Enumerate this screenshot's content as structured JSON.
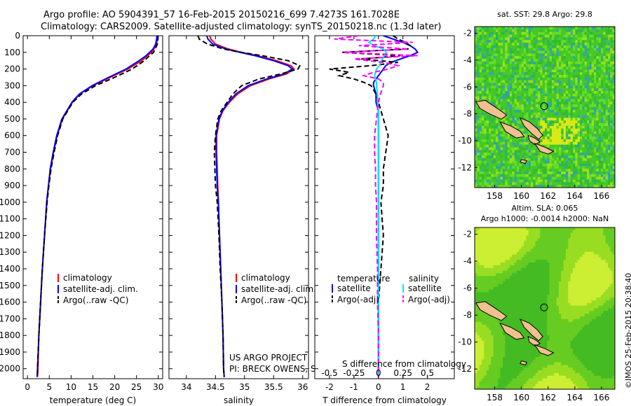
{
  "header": {
    "line1": "Argo profile: AO 5904391_57 16-Feb-2015 20150216_699 7.4273S 161.7028E",
    "line2": "Climatology: CARS2009. Satellite-adjusted climatology: synTS_20150218.nc (1.3d later)"
  },
  "colors": {
    "clim": "#ff0000",
    "sat": "#0000ff",
    "argo": "#000000",
    "sat_s": "#00e5ff",
    "argo_s": "#ff00ff",
    "land": "#f0c090"
  },
  "chart_data": [
    {
      "id": "temperature",
      "type": "line",
      "xlabel": "temperature (deg C)",
      "xlim": [
        -1,
        31
      ],
      "xticks": [
        0,
        5,
        10,
        15,
        20,
        25,
        30
      ],
      "ylim": [
        2060,
        0
      ],
      "yticks": [
        0,
        100,
        200,
        300,
        400,
        500,
        600,
        700,
        800,
        900,
        1000,
        1100,
        1200,
        1300,
        1400,
        1500,
        1600,
        1700,
        1800,
        1900,
        2000
      ],
      "legend": [
        "climatology",
        "satellite-adj. clim.",
        "Argo(..raw -QC)"
      ],
      "depth": [
        0,
        20,
        50,
        80,
        100,
        120,
        150,
        200,
        250,
        300,
        350,
        400,
        500,
        600,
        700,
        800,
        900,
        1000,
        1200,
        1400,
        1600,
        1800,
        2000,
        2050
      ],
      "series": [
        {
          "name": "climatology",
          "style": "clim",
          "values": [
            29.8,
            29.8,
            29.6,
            29.0,
            28.4,
            27.5,
            26.2,
            23.0,
            19.0,
            15.0,
            12.0,
            10.3,
            8.0,
            6.8,
            6.0,
            5.3,
            4.8,
            4.4,
            3.9,
            3.4,
            3.0,
            2.6,
            2.4,
            2.3
          ]
        },
        {
          "name": "satellite-adj. clim.",
          "style": "sat",
          "values": [
            29.7,
            29.6,
            29.4,
            28.8,
            28.0,
            27.2,
            25.6,
            22.6,
            18.6,
            14.8,
            11.9,
            10.2,
            7.9,
            6.7,
            5.9,
            5.2,
            4.8,
            4.4,
            3.9,
            3.4,
            3.0,
            2.6,
            2.3,
            2.2
          ]
        },
        {
          "name": "Argo(..raw -QC)",
          "style": "argo",
          "values": [
            29.9,
            29.9,
            29.8,
            29.3,
            28.9,
            28.0,
            26.8,
            24.0,
            20.0,
            15.6,
            12.4,
            10.4,
            8.1,
            6.9,
            6.1,
            5.4,
            4.9,
            4.5,
            3.9,
            3.4,
            3.0,
            2.6,
            2.3,
            2.3
          ]
        }
      ]
    },
    {
      "id": "salinity",
      "type": "line",
      "xlabel": "salinity",
      "xlim": [
        33.7,
        36.1
      ],
      "xticks": [
        34,
        34.5,
        35,
        35.5,
        36
      ],
      "legend": [
        "climatology",
        "satellite-adj. clim.",
        "Argo(..raw -QC)"
      ],
      "credit": [
        "US ARGO PROJECT",
        "PI: BRECK OWENS, STEVE JAYNE, P. E. ROBBINS"
      ],
      "depth": [
        0,
        20,
        50,
        80,
        100,
        120,
        150,
        180,
        200,
        230,
        260,
        300,
        350,
        400,
        450,
        500,
        600,
        700,
        800,
        900,
        1000,
        1200,
        1400,
        1600,
        1800,
        2000,
        2050
      ],
      "series": [
        {
          "name": "climatology",
          "style": "clim",
          "values": [
            34.4,
            34.42,
            34.5,
            34.72,
            34.95,
            35.22,
            35.55,
            35.8,
            35.85,
            35.72,
            35.42,
            35.1,
            34.88,
            34.74,
            34.63,
            34.57,
            34.52,
            34.52,
            34.53,
            34.54,
            34.55,
            34.57,
            34.59,
            34.61,
            34.63,
            34.64,
            34.65
          ]
        },
        {
          "name": "satellite-adj. clim.",
          "style": "sat",
          "values": [
            34.35,
            34.37,
            34.45,
            34.68,
            34.92,
            35.18,
            35.5,
            35.75,
            35.82,
            35.68,
            35.38,
            35.06,
            34.85,
            34.72,
            34.62,
            34.56,
            34.51,
            34.51,
            34.52,
            34.53,
            34.55,
            34.57,
            34.59,
            34.61,
            34.63,
            34.64,
            34.65
          ]
        },
        {
          "name": "Argo(..raw -QC)",
          "style": "argo",
          "values": [
            34.2,
            34.22,
            34.36,
            34.64,
            34.95,
            35.3,
            35.75,
            35.95,
            35.92,
            35.62,
            35.25,
            34.95,
            34.8,
            34.7,
            34.6,
            34.54,
            34.5,
            34.48,
            34.49,
            34.5,
            34.53,
            34.56,
            34.58,
            34.61,
            34.63,
            34.64,
            34.65
          ]
        }
      ]
    },
    {
      "id": "difference",
      "type": "line",
      "xlabel": "T difference from climatology",
      "top_label": "S difference from climatology",
      "xlim": [
        -2.6,
        3.1
      ],
      "xticks": [
        -2,
        -1,
        0,
        1,
        2
      ],
      "sticks": [
        -0.5,
        -0.25,
        0,
        0.25,
        0.5
      ],
      "stick_labels": [
        "-0.5",
        "-0.25",
        "0",
        "0.25",
        "0.5"
      ],
      "legend_titles": [
        "temperature",
        "salinity"
      ],
      "legend": [
        "satellite",
        "Argo(-adj)",
        "satellite",
        "Argo(-adj)"
      ],
      "depth": [
        0,
        20,
        40,
        60,
        80,
        100,
        120,
        140,
        160,
        180,
        200,
        220,
        240,
        260,
        280,
        300,
        350,
        400,
        450,
        500,
        600,
        700,
        800,
        900,
        1000,
        1200,
        1400,
        1600,
        1800,
        2000,
        2050
      ],
      "series": [
        {
          "name": "temperature satellite",
          "style": "sat",
          "values": [
            0.2,
            0.6,
            1.0,
            1.3,
            1.5,
            1.6,
            1.3,
            0.9,
            0.5,
            0.3,
            0.2,
            0.1,
            0.0,
            -0.1,
            -0.2,
            -0.2,
            -0.1,
            -0.1,
            0.0,
            0.0,
            0.0,
            0.0,
            0.0,
            0.0,
            0.0,
            0.0,
            0.0,
            0.0,
            0.0,
            0.0,
            0.0
          ]
        },
        {
          "name": "temperature Argo(-adj)",
          "style": "argo",
          "values": [
            0.6,
            0.8,
            1.1,
            1.3,
            1.2,
            -1.5,
            0.9,
            -0.7,
            0.8,
            -0.3,
            -2.0,
            -1.2,
            -1.6,
            -1.0,
            -0.6,
            -0.3,
            -0.1,
            0.0,
            0.1,
            0.2,
            0.4,
            0.3,
            0.2,
            0.2,
            0.1,
            0.2,
            0.1,
            0.0,
            0.0,
            0.0,
            0.0
          ]
        },
        {
          "name": "salinity satellite",
          "style": "sat_s",
          "values": [
            -0.03,
            -0.05,
            -0.1,
            -0.04,
            0.05,
            0.08,
            0.06,
            0.04,
            0.02,
            0.01,
            -0.02,
            -0.03,
            -0.04,
            -0.03,
            -0.02,
            -0.02,
            -0.01,
            -0.01,
            0.0,
            0.0,
            0.0,
            0.0,
            0.0,
            0.0,
            0.0,
            0.0,
            0.0,
            0.0,
            0.0,
            0.0,
            0.0
          ]
        },
        {
          "name": "salinity Argo(-adj)",
          "style": "argo_s",
          "values": [
            -0.2,
            -0.45,
            0.35,
            -0.2,
            0.3,
            -0.35,
            0.4,
            -0.25,
            0.05,
            0.2,
            0.1,
            -0.05,
            -0.15,
            0.0,
            0.05,
            0.05,
            0.02,
            0.0,
            -0.01,
            -0.02,
            -0.04,
            -0.04,
            -0.03,
            -0.03,
            -0.02,
            -0.02,
            -0.01,
            -0.01,
            0.0,
            0.0,
            0.0
          ]
        }
      ]
    }
  ],
  "maps": [
    {
      "id": "sst",
      "title": "sat. SST: 29.8  Argo: 29.8",
      "kind": "sst"
    },
    {
      "id": "sla",
      "title": "Altim. SLA: 0.065",
      "title2": "Argo h1000: -0.0014  h2000: NaN",
      "kind": "sla"
    }
  ],
  "map_axes": {
    "lon": [
      156.5,
      167.0
    ],
    "lat": [
      -13.5,
      -1.5
    ],
    "xticks": [
      158,
      160,
      162,
      164,
      166
    ],
    "yticks": [
      -2,
      -4,
      -6,
      -8,
      -10,
      -12
    ],
    "float_lon": 161.7,
    "float_lat": -7.43
  },
  "watermark": "©IMOS 25-Feb-2015 20:38:40"
}
